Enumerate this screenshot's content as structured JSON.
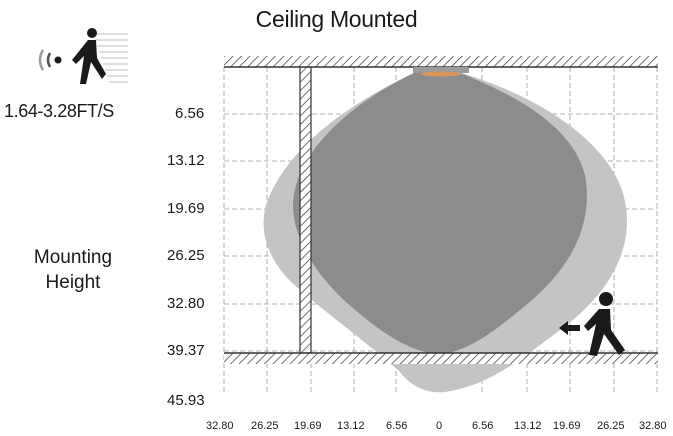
{
  "title": "Ceiling Mounted",
  "speed_label": "1.64-3.28FT/S",
  "mounting_label": [
    "Mounting",
    "Height"
  ],
  "y_ticks": [
    "6.56",
    "13.12",
    "19.69",
    "26.25",
    "32.80",
    "39.37",
    "45.93"
  ],
  "x_ticks": [
    "32.80",
    "26.25",
    "19.69",
    "13.12",
    "6.56",
    "0",
    "6.56",
    "13.12",
    "19.69",
    "26.25",
    "32.80"
  ],
  "icons": {
    "motion": "motion-wave-walking-person-icon",
    "walker": "walking-person-icon",
    "arrow": "left-arrow-icon"
  },
  "colors": {
    "outer_zone": "#c4c4c4",
    "inner_zone": "#8c8c8c",
    "sensor": "#d9955a",
    "grid": "#9a9a9a"
  }
}
